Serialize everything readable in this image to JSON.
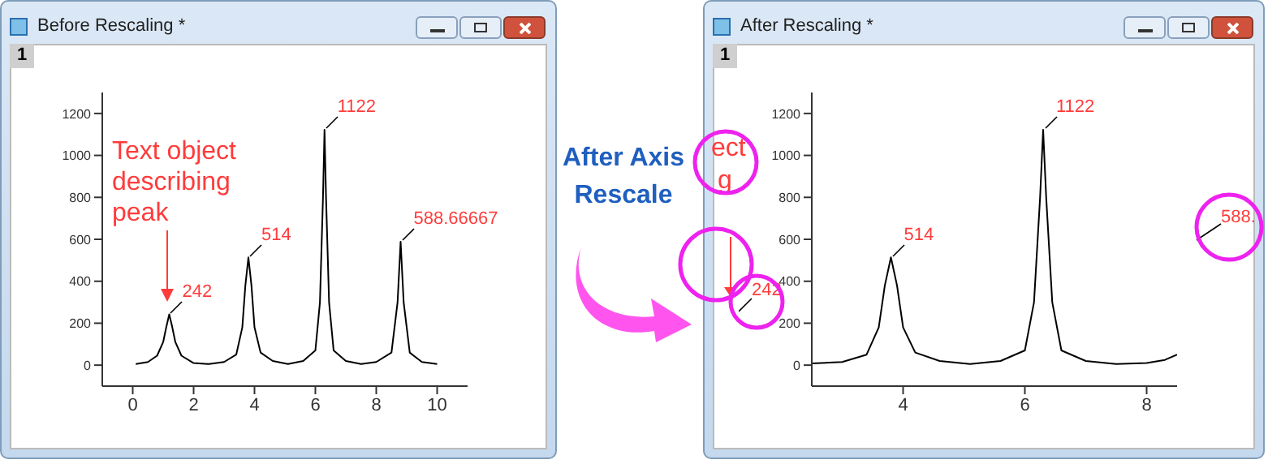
{
  "chart_data": [
    {
      "type": "line",
      "title": "Before Rescaling *",
      "x": [
        0.1,
        0.5,
        0.8,
        1.0,
        1.1,
        1.2,
        1.3,
        1.4,
        1.6,
        2.0,
        2.5,
        3.0,
        3.4,
        3.6,
        3.7,
        3.8,
        3.9,
        4.0,
        4.2,
        4.6,
        5.1,
        5.6,
        6.0,
        6.15,
        6.25,
        6.3,
        6.35,
        6.45,
        6.6,
        7.0,
        7.5,
        8.0,
        8.5,
        8.7,
        8.8,
        8.9,
        9.1,
        9.5,
        10.0
      ],
      "series": [
        {
          "color": "#000000",
          "values": [
            5,
            15,
            45,
            110,
            180,
            242,
            180,
            110,
            45,
            10,
            5,
            15,
            50,
            180,
            380,
            514,
            380,
            180,
            60,
            20,
            5,
            20,
            70,
            300,
            800,
            1122,
            800,
            300,
            70,
            20,
            5,
            15,
            60,
            300,
            588.67,
            300,
            60,
            15,
            5
          ]
        }
      ],
      "xlim": [
        -1,
        11
      ],
      "xticks": [
        0,
        2,
        4,
        6,
        8,
        10
      ],
      "ylim": [
        -100,
        1300
      ],
      "yticks": [
        0,
        200,
        400,
        600,
        800,
        1000,
        1200
      ],
      "annotations": [
        "1",
        "Text object describing peak",
        {
          "text": "242",
          "x": 1.2,
          "y": 242
        },
        {
          "text": "514",
          "x": 3.8,
          "y": 514
        },
        {
          "text": "1122",
          "x": 6.3,
          "y": 1122
        },
        {
          "text": "588.66667",
          "x": 8.8,
          "y": 588.67
        }
      ]
    },
    {
      "type": "line",
      "title": "After Rescaling *",
      "x": [
        2.5,
        3.0,
        3.4,
        3.6,
        3.7,
        3.8,
        3.9,
        4.0,
        4.2,
        4.6,
        5.1,
        5.6,
        6.0,
        6.15,
        6.25,
        6.3,
        6.35,
        6.45,
        6.6,
        7.0,
        7.5,
        8.0,
        8.3,
        8.5
      ],
      "series": [
        {
          "color": "#000000",
          "values": [
            8,
            15,
            50,
            180,
            380,
            514,
            380,
            180,
            60,
            20,
            5,
            20,
            70,
            300,
            800,
            1122,
            800,
            300,
            70,
            20,
            5,
            10,
            25,
            50
          ]
        }
      ],
      "xlim": [
        2.5,
        8.5
      ],
      "xticks": [
        4,
        6,
        8
      ],
      "ylim": [
        -100,
        1300
      ],
      "yticks": [
        0,
        200,
        400,
        600,
        800,
        1000,
        1200
      ],
      "annotations": [
        "1",
        "After Axis Rescale",
        "ect",
        "g",
        "242",
        "588.",
        {
          "text": "514",
          "x": 3.8,
          "y": 514
        },
        {
          "text": "1122",
          "x": 6.3,
          "y": 1122
        }
      ]
    }
  ]
}
